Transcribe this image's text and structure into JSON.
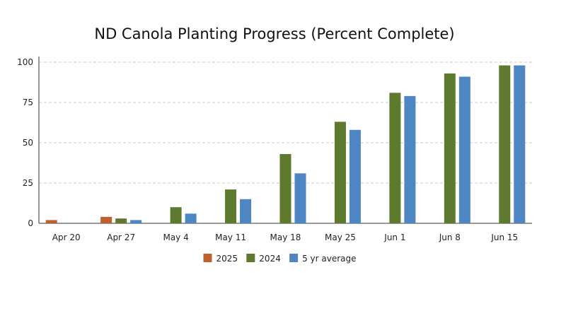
{
  "chart_data": {
    "type": "bar",
    "title": "ND Canola Planting Progress (Percent Complete)",
    "xlabel": "",
    "ylabel": "",
    "categories": [
      "Apr 20",
      "Apr 27",
      "May 4",
      "May 11",
      "May 18",
      "May 25",
      "Jun 1",
      "Jun 8",
      "Jun 15"
    ],
    "series": [
      {
        "name": "2025",
        "color": "#c0602f",
        "values": [
          2,
          4,
          null,
          null,
          null,
          null,
          null,
          null,
          null
        ]
      },
      {
        "name": "2024",
        "color": "#5e7a2e",
        "values": [
          0,
          3,
          10,
          21,
          43,
          63,
          81,
          93,
          98
        ]
      },
      {
        "name": "5 yr average",
        "color": "#4e86c4",
        "values": [
          0,
          2,
          6,
          15,
          31,
          58,
          79,
          91,
          98
        ]
      }
    ],
    "ylim": [
      0,
      100
    ],
    "yticks": [
      0,
      25,
      50,
      75,
      100
    ],
    "grid": true,
    "legend_position": "bottom"
  }
}
